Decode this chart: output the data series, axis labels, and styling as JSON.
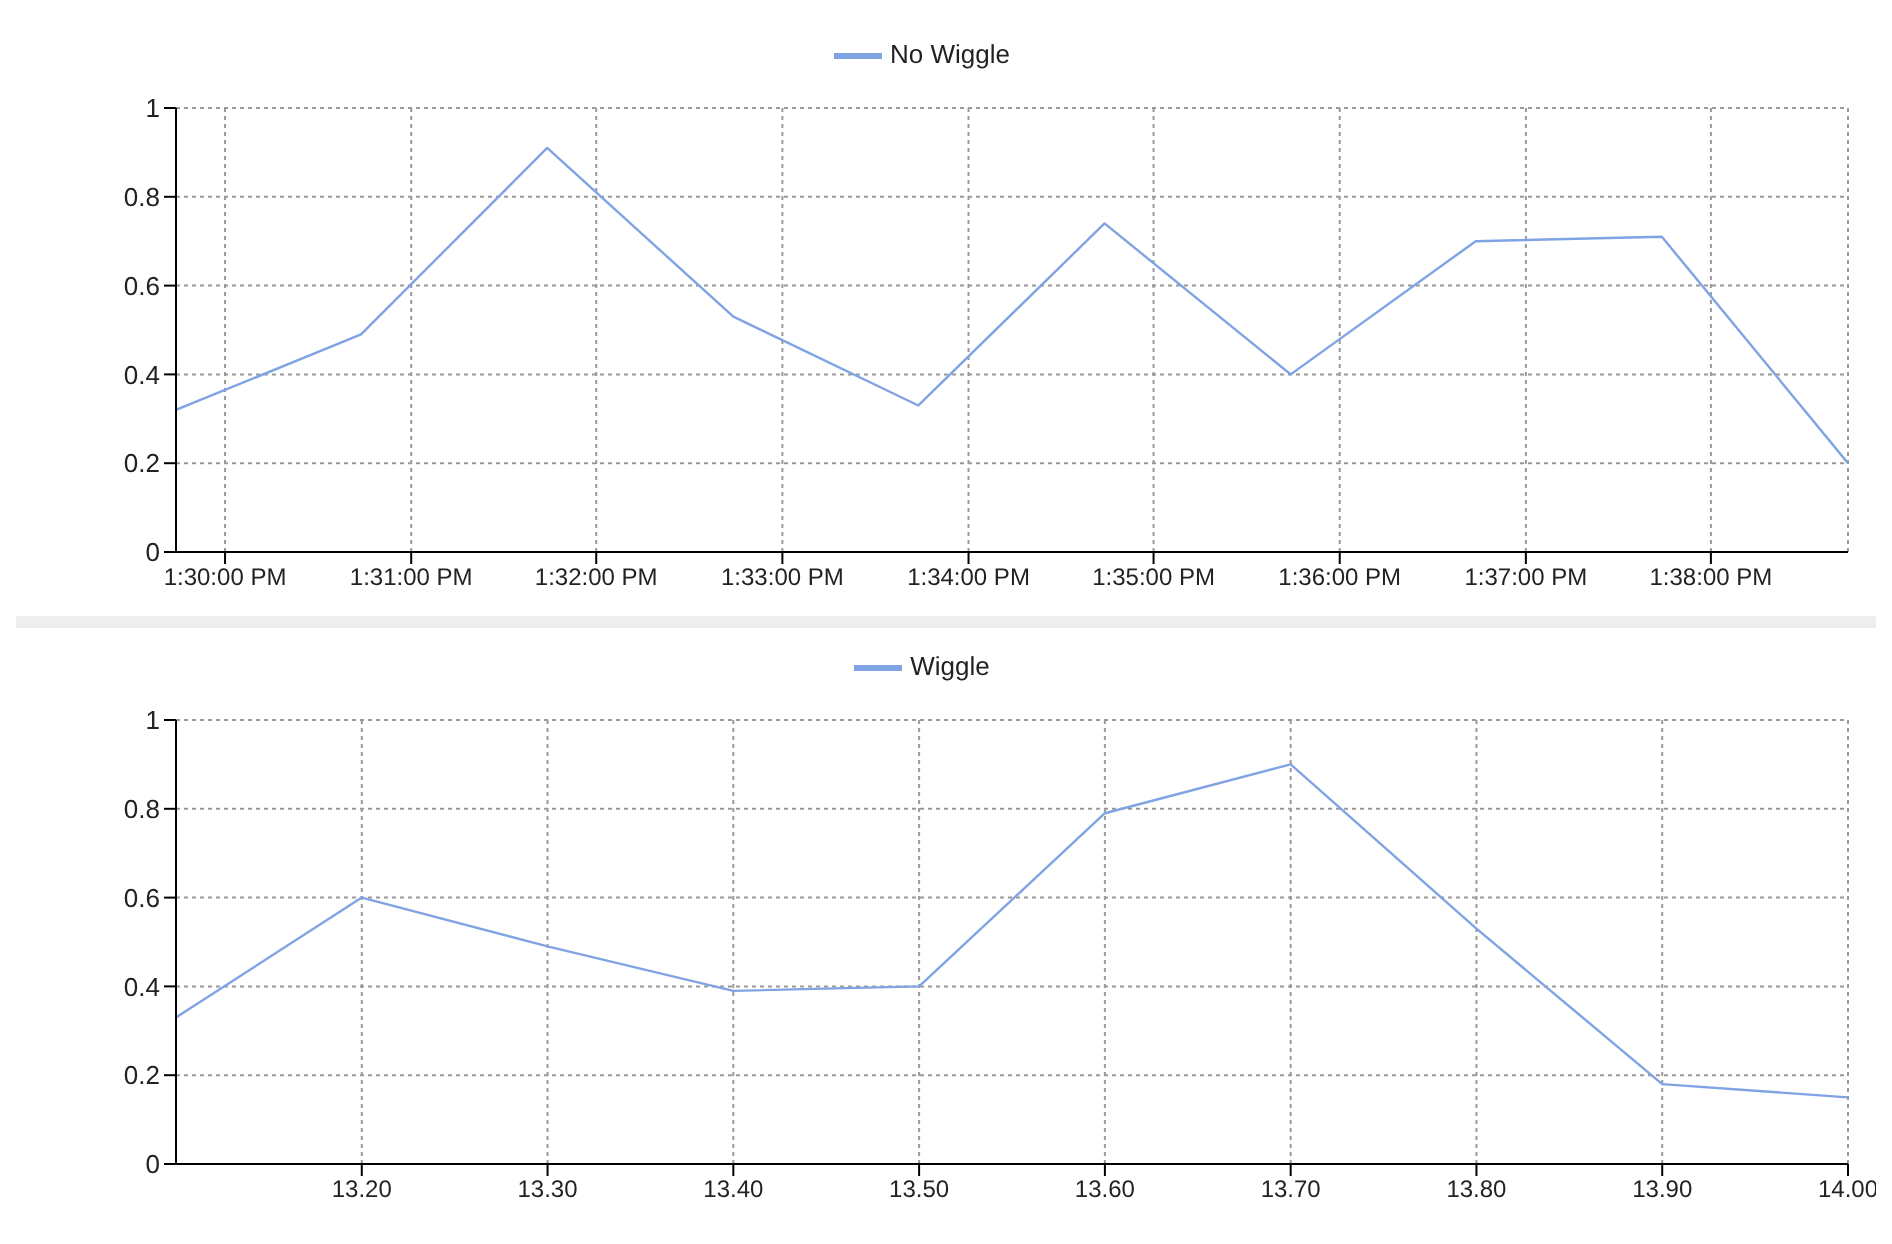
{
  "chart_data": [
    {
      "type": "line",
      "x": [
        13.4956,
        13.5122,
        13.5289,
        13.5456,
        13.5622,
        13.5789,
        13.5956,
        13.6122,
        13.6289,
        13.6456
      ],
      "series": [
        {
          "name": "No Wiggle",
          "color": "#7fa3e3",
          "values": [
            0.32,
            0.49,
            0.91,
            0.53,
            0.33,
            0.74,
            0.4,
            0.7,
            0.71,
            0.2
          ]
        }
      ],
      "xlim": [
        13.4956,
        13.6456
      ],
      "xticks": [
        {
          "value": 13.5,
          "label": "1:30:00 PM"
        },
        {
          "value": 13.5167,
          "label": "1:31:00 PM"
        },
        {
          "value": 13.5333,
          "label": "1:32:00 PM"
        },
        {
          "value": 13.55,
          "label": "1:33:00 PM"
        },
        {
          "value": 13.5667,
          "label": "1:34:00 PM"
        },
        {
          "value": 13.5833,
          "label": "1:35:00 PM"
        },
        {
          "value": 13.6,
          "label": "1:36:00 PM"
        },
        {
          "value": 13.6167,
          "label": "1:37:00 PM"
        },
        {
          "value": 13.6333,
          "label": "1:38:00 PM"
        }
      ],
      "ylim": [
        0,
        1
      ],
      "yticks": [
        0,
        0.2,
        0.4,
        0.6,
        0.8,
        1
      ],
      "grid": true,
      "legend": "top",
      "marker": "none",
      "line_style": "solid"
    },
    {
      "type": "line",
      "x": [
        13.1,
        13.2,
        13.3,
        13.4,
        13.5,
        13.6,
        13.7,
        13.8,
        13.9,
        14.0
      ],
      "series": [
        {
          "name": "Wiggle",
          "color": "#7fa3e3",
          "values": [
            0.33,
            0.6,
            0.49,
            0.39,
            0.4,
            0.79,
            0.9,
            0.53,
            0.18,
            0.15
          ]
        }
      ],
      "xlim": [
        13.1,
        14.0
      ],
      "xticks": [
        {
          "value": 13.2,
          "label": "13.20"
        },
        {
          "value": 13.3,
          "label": "13.30"
        },
        {
          "value": 13.4,
          "label": "13.40"
        },
        {
          "value": 13.5,
          "label": "13.50"
        },
        {
          "value": 13.6,
          "label": "13.60"
        },
        {
          "value": 13.7,
          "label": "13.70"
        },
        {
          "value": 13.8,
          "label": "13.80"
        },
        {
          "value": 13.9,
          "label": "13.90"
        },
        {
          "value": 14.0,
          "label": "14.00"
        }
      ],
      "ylim": [
        0,
        1
      ],
      "yticks": [
        0,
        0.2,
        0.4,
        0.6,
        0.8,
        1
      ],
      "grid": true,
      "legend": "top",
      "marker": "none",
      "line_style": "solid"
    }
  ]
}
